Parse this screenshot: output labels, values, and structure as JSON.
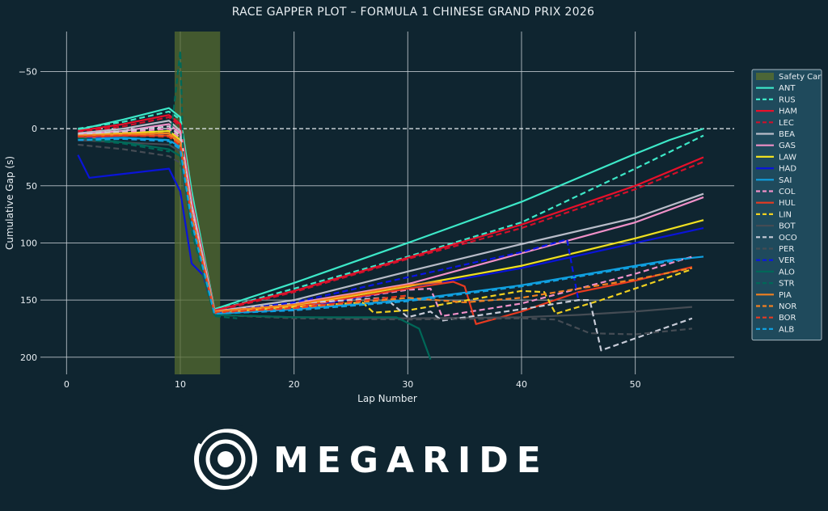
{
  "chart_data": {
    "type": "line",
    "title": "RACE GAPPER PLOT – FORMULA 1 CHINESE GRAND PRIX 2026",
    "xlabel": "Lap Number",
    "ylabel": "Cumulative Gap (s)",
    "xlim": [
      -2.3,
      58.7
    ],
    "ylim": [
      -85,
      215
    ],
    "y_inverted": true,
    "xticks": [
      0,
      10,
      20,
      30,
      40,
      50
    ],
    "yticks": [
      -50,
      0,
      50,
      100,
      150,
      200
    ],
    "grid": true,
    "reference_line": {
      "y": 0,
      "style": "dashed"
    },
    "safety_car": {
      "label": "Safety Car",
      "from_lap": 9.5,
      "to_lap": 13.5,
      "color": "#556b2f"
    },
    "legend_position": "right",
    "series": [
      {
        "name": "ANT",
        "color": "#3de8c8",
        "dash": false,
        "points": [
          [
            1,
            1
          ],
          [
            5,
            -8
          ],
          [
            9,
            -18
          ],
          [
            10,
            -10
          ],
          [
            11,
            55
          ],
          [
            13,
            158
          ],
          [
            20,
            135
          ],
          [
            30,
            100
          ],
          [
            40,
            64
          ],
          [
            50,
            22
          ],
          [
            53,
            10
          ],
          [
            56,
            0
          ]
        ]
      },
      {
        "name": "RUS",
        "color": "#3de8c8",
        "dash": true,
        "points": [
          [
            1,
            0
          ],
          [
            5,
            -6
          ],
          [
            9,
            -15
          ],
          [
            10,
            -8
          ],
          [
            11,
            58
          ],
          [
            13,
            159
          ],
          [
            20,
            140
          ],
          [
            30,
            112
          ],
          [
            40,
            82
          ],
          [
            50,
            35
          ],
          [
            56,
            6
          ]
        ]
      },
      {
        "name": "HAM",
        "color": "#e8102a",
        "dash": false,
        "points": [
          [
            1,
            2
          ],
          [
            5,
            -4
          ],
          [
            9,
            -12
          ],
          [
            10,
            -4
          ],
          [
            11,
            62
          ],
          [
            13,
            159
          ],
          [
            20,
            142
          ],
          [
            30,
            113
          ],
          [
            40,
            84
          ],
          [
            50,
            50
          ],
          [
            56,
            25
          ]
        ]
      },
      {
        "name": "LEC",
        "color": "#d0102a",
        "dash": true,
        "points": [
          [
            1,
            3
          ],
          [
            5,
            -2
          ],
          [
            9,
            -10
          ],
          [
            10,
            -2
          ],
          [
            11,
            64
          ],
          [
            13,
            160
          ],
          [
            20,
            143
          ],
          [
            30,
            114
          ],
          [
            40,
            87
          ],
          [
            50,
            53
          ],
          [
            56,
            29
          ]
        ]
      },
      {
        "name": "BEA",
        "color": "#b8bcc8",
        "dash": false,
        "points": [
          [
            1,
            4
          ],
          [
            5,
            0
          ],
          [
            9,
            -7
          ],
          [
            10,
            2
          ],
          [
            11,
            66
          ],
          [
            13,
            160
          ],
          [
            20,
            150
          ],
          [
            30,
            125
          ],
          [
            40,
            101
          ],
          [
            50,
            78
          ],
          [
            56,
            57
          ]
        ]
      },
      {
        "name": "GAS",
        "color": "#f090c8",
        "dash": false,
        "points": [
          [
            1,
            5
          ],
          [
            5,
            2
          ],
          [
            9,
            -4
          ],
          [
            10,
            4
          ],
          [
            11,
            68
          ],
          [
            13,
            160
          ],
          [
            20,
            153
          ],
          [
            30,
            136
          ],
          [
            40,
            109
          ],
          [
            50,
            82
          ],
          [
            56,
            60
          ]
        ]
      },
      {
        "name": "LAW",
        "color": "#f0e020",
        "dash": false,
        "points": [
          [
            1,
            6
          ],
          [
            5,
            4
          ],
          [
            9,
            2
          ],
          [
            10,
            10
          ],
          [
            11,
            72
          ],
          [
            13,
            161
          ],
          [
            20,
            155
          ],
          [
            30,
            138
          ],
          [
            40,
            120
          ],
          [
            50,
            96
          ],
          [
            56,
            80
          ]
        ]
      },
      {
        "name": "HAD",
        "color": "#0a14d8",
        "dash": false,
        "points": [
          [
            1,
            23
          ],
          [
            2,
            43
          ],
          [
            9,
            35
          ],
          [
            10,
            55
          ],
          [
            11,
            118
          ],
          [
            12,
            128
          ],
          [
            13,
            162
          ],
          [
            20,
            158
          ],
          [
            30,
            140
          ],
          [
            40,
            122
          ],
          [
            50,
            100
          ],
          [
            56,
            87
          ]
        ]
      },
      {
        "name": "SAI",
        "color": "#10a0e0",
        "dash": false,
        "points": [
          [
            1,
            9
          ],
          [
            5,
            8
          ],
          [
            9,
            10
          ],
          [
            10,
            16
          ],
          [
            11,
            80
          ],
          [
            13,
            162
          ],
          [
            20,
            158
          ],
          [
            30,
            150
          ],
          [
            40,
            137
          ],
          [
            50,
            120
          ],
          [
            53,
            115
          ],
          [
            56,
            112
          ]
        ]
      },
      {
        "name": "COL",
        "color": "#f090c8",
        "dash": true,
        "points": [
          [
            1,
            7
          ],
          [
            5,
            3
          ],
          [
            9,
            0
          ],
          [
            10,
            8
          ],
          [
            11,
            72
          ],
          [
            13,
            161
          ],
          [
            20,
            156
          ],
          [
            30,
            141
          ],
          [
            32,
            140
          ],
          [
            33,
            164
          ],
          [
            40,
            153
          ],
          [
            50,
            127
          ],
          [
            55,
            112
          ]
        ]
      },
      {
        "name": "HUL",
        "color": "#e83a20",
        "dash": false,
        "points": [
          [
            1,
            8
          ],
          [
            5,
            6
          ],
          [
            9,
            6
          ],
          [
            10,
            12
          ],
          [
            11,
            76
          ],
          [
            13,
            161
          ],
          [
            20,
            156
          ],
          [
            30,
            140
          ],
          [
            34,
            134
          ],
          [
            35,
            138
          ],
          [
            36,
            171
          ],
          [
            40,
            160
          ],
          [
            45,
            143
          ],
          [
            50,
            133
          ],
          [
            55,
            121
          ]
        ]
      },
      {
        "name": "LIN",
        "color": "#f0d020",
        "dash": true,
        "points": [
          [
            1,
            6
          ],
          [
            5,
            4
          ],
          [
            9,
            4
          ],
          [
            10,
            14
          ],
          [
            11,
            78
          ],
          [
            13,
            161
          ],
          [
            20,
            156
          ],
          [
            26,
            152
          ],
          [
            27,
            161
          ],
          [
            30,
            159
          ],
          [
            40,
            142
          ],
          [
            42,
            143
          ],
          [
            43,
            162
          ],
          [
            47,
            150
          ],
          [
            55,
            123
          ]
        ]
      },
      {
        "name": "BOT",
        "color": "#454c54",
        "dash": false,
        "points": [
          [
            1,
            10
          ],
          [
            9,
            14
          ],
          [
            10,
            20
          ],
          [
            11,
            84
          ],
          [
            13,
            163
          ],
          [
            20,
            165
          ],
          [
            30,
            166
          ],
          [
            40,
            165
          ],
          [
            45,
            163
          ],
          [
            50,
            160
          ],
          [
            55,
            156
          ]
        ]
      },
      {
        "name": "OCO",
        "color": "#c8ccd8",
        "dash": true,
        "points": [
          [
            1,
            5
          ],
          [
            5,
            2
          ],
          [
            9,
            -2
          ],
          [
            10,
            6
          ],
          [
            11,
            70
          ],
          [
            13,
            160
          ],
          [
            20,
            153
          ],
          [
            28,
            148
          ],
          [
            30,
            165
          ],
          [
            32,
            160
          ],
          [
            33,
            168
          ],
          [
            40,
            158
          ],
          [
            45,
            150
          ],
          [
            46,
            150
          ],
          [
            47,
            194
          ],
          [
            55,
            166
          ]
        ]
      },
      {
        "name": "PER",
        "color": "#454c54",
        "dash": true,
        "points": [
          [
            1,
            14
          ],
          [
            5,
            18
          ],
          [
            9,
            24
          ],
          [
            10,
            30
          ],
          [
            11,
            88
          ],
          [
            13,
            163
          ],
          [
            20,
            166
          ],
          [
            30,
            167
          ],
          [
            40,
            166
          ],
          [
            43,
            167
          ],
          [
            46,
            179
          ],
          [
            50,
            180
          ],
          [
            55,
            175
          ]
        ]
      },
      {
        "name": "VER",
        "color": "#0a14e8",
        "dash": true,
        "points": [
          [
            1,
            8
          ],
          [
            5,
            6
          ],
          [
            9,
            4
          ],
          [
            10,
            12
          ],
          [
            11,
            75
          ],
          [
            13,
            161
          ],
          [
            20,
            152
          ],
          [
            30,
            130
          ],
          [
            40,
            108
          ],
          [
            44,
            97
          ],
          [
            45,
            150
          ]
        ]
      },
      {
        "name": "ALO",
        "color": "#006858",
        "dash": false,
        "points": [
          [
            1,
            8
          ],
          [
            5,
            12
          ],
          [
            9,
            18
          ],
          [
            10,
            24
          ],
          [
            11,
            86
          ],
          [
            13,
            163
          ],
          [
            20,
            165
          ],
          [
            29,
            165
          ],
          [
            31,
            175
          ],
          [
            32,
            202
          ]
        ]
      },
      {
        "name": "STR",
        "color": "#006858",
        "dash": true,
        "points": [
          [
            1,
            9
          ],
          [
            5,
            13
          ],
          [
            9,
            20
          ],
          [
            10,
            -68
          ],
          [
            10.3,
            40
          ],
          [
            11,
            90
          ],
          [
            13,
            164
          ],
          [
            15,
            166
          ]
        ]
      },
      {
        "name": "PIA",
        "color": "#f08020",
        "dash": false,
        "points": [
          [
            1,
            6
          ],
          [
            5,
            5
          ],
          [
            9,
            4
          ],
          [
            10,
            12
          ],
          [
            11,
            76
          ],
          [
            13,
            160
          ],
          [
            20,
            154
          ],
          [
            30,
            137
          ],
          [
            33,
            134
          ]
        ]
      },
      {
        "name": "NOR",
        "color": "#f08020",
        "dash": true,
        "points": [
          [
            1,
            7
          ],
          [
            5,
            6
          ],
          [
            9,
            6
          ],
          [
            10,
            14
          ],
          [
            11,
            78
          ],
          [
            13,
            161
          ],
          [
            20,
            157
          ],
          [
            30,
            148
          ],
          [
            35,
            152
          ],
          [
            40,
            148
          ],
          [
            45,
            140
          ],
          [
            50,
            132
          ],
          [
            55,
            122
          ]
        ]
      },
      {
        "name": "BOR",
        "color": "#e83a20",
        "dash": true,
        "points": [
          [
            1,
            7
          ],
          [
            5,
            6
          ],
          [
            9,
            7
          ],
          [
            10,
            15
          ],
          [
            11,
            79
          ],
          [
            13,
            161
          ],
          [
            20,
            157
          ],
          [
            30,
            146
          ]
        ]
      },
      {
        "name": "ALB",
        "color": "#10a0e0",
        "dash": true,
        "points": [
          [
            1,
            10
          ],
          [
            5,
            9
          ],
          [
            9,
            11
          ],
          [
            10,
            18
          ],
          [
            11,
            82
          ],
          [
            13,
            162
          ],
          [
            20,
            159
          ],
          [
            30,
            151
          ],
          [
            40,
            138
          ],
          [
            50,
            121
          ],
          [
            55,
            113
          ]
        ]
      }
    ]
  },
  "logo": {
    "text": "MEGARIDE"
  }
}
